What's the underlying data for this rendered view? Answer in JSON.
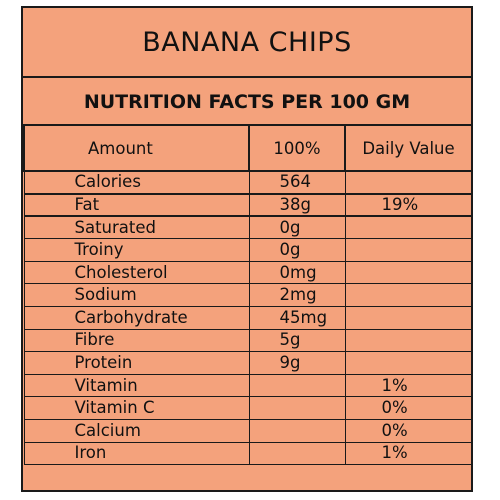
{
  "title": "BANANA CHIPS",
  "subtitle": "NUTRITION FACTS PER 100 GM",
  "headers": {
    "amount": "Amount",
    "per100": "100%",
    "daily": "Daily Value"
  },
  "rows": [
    {
      "name": "Calories",
      "amount": "564",
      "daily": ""
    },
    {
      "name": "Fat",
      "amount": "38g",
      "daily": "19%"
    },
    {
      "name": "Saturated",
      "amount": "0g",
      "daily": ""
    },
    {
      "name": "Troiny",
      "amount": "0g",
      "daily": ""
    },
    {
      "name": "Cholesterol",
      "amount": "0mg",
      "daily": ""
    },
    {
      "name": "Sodium",
      "amount": "2mg",
      "daily": ""
    },
    {
      "name": "Carbohydrate",
      "amount": "45mg",
      "daily": ""
    },
    {
      "name": "Fibre",
      "amount": "5g",
      "daily": ""
    },
    {
      "name": "Protein",
      "amount": "9g",
      "daily": ""
    },
    {
      "name": "Vitamin",
      "amount": "",
      "daily": "1%"
    },
    {
      "name": "Vitamin C",
      "amount": "",
      "daily": "0%"
    },
    {
      "name": "Calcium",
      "amount": "",
      "daily": "0%"
    },
    {
      "name": "Iron",
      "amount": "",
      "daily": "1%"
    }
  ],
  "colors": {
    "panel": "#f4a27c",
    "border": "#1a1a1a"
  }
}
